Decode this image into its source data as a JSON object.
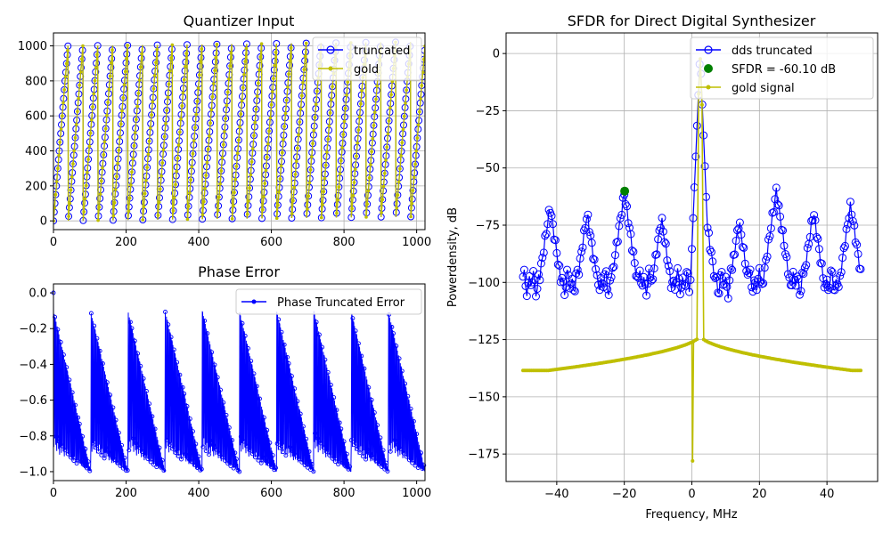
{
  "colors": {
    "blue": "#0000ff",
    "gold": "#bfbf00",
    "green": "#008000",
    "grid": "#b0b0b0"
  },
  "chart_data": [
    {
      "type": "line",
      "title": "Quantizer Input",
      "xlabel": "",
      "ylabel": "",
      "xlim": [
        0,
        1023
      ],
      "ylim": [
        -50,
        1074
      ],
      "xticks": [
        0,
        200,
        400,
        600,
        800,
        1000
      ],
      "yticks": [
        0,
        200,
        400,
        600,
        800,
        1000
      ],
      "grid": true,
      "legend": "top-right",
      "series": [
        {
          "name": "truncated",
          "marker": "open-circle",
          "color": "blue",
          "description": "sawtooth ramp from 0 to ~1020 repeating every ~40.96 samples over 1024 samples",
          "period": 40.96,
          "amplitude": 1023,
          "length": 1024
        },
        {
          "name": "gold",
          "marker": "dot",
          "color": "gold",
          "description": "same sawtooth ramp (untruncated reference)",
          "period": 40.96,
          "amplitude": 1023,
          "length": 1024
        }
      ]
    },
    {
      "type": "line",
      "title": "Phase Error",
      "xlabel": "",
      "ylabel": "",
      "xlim": [
        0,
        1023
      ],
      "ylim": [
        -1.05,
        0.05
      ],
      "xticks": [
        0,
        200,
        400,
        600,
        800,
        1000
      ],
      "yticks": [
        0.0,
        -0.2,
        -0.4,
        -0.6,
        -0.8,
        -1.0
      ],
      "grid": false,
      "legend": "top-right",
      "series": [
        {
          "name": "Phase Truncated Error",
          "marker": "dot",
          "color": "blue",
          "description": "stem-like error between -1.0 and 0, envelope resetting every ~102 samples",
          "envelope_period": 102.4,
          "length": 1024
        }
      ]
    },
    {
      "type": "line",
      "title": "SFDR for Direct Digital Synthesizer",
      "xlabel": "Frequency, MHz",
      "ylabel": "Powerdensity, dB",
      "xlim": [
        -55,
        55
      ],
      "ylim": [
        -187,
        9
      ],
      "xticks": [
        -40,
        -20,
        0,
        20,
        40
      ],
      "yticks": [
        0,
        -25,
        -50,
        -75,
        -100,
        -125,
        -150,
        -175
      ],
      "grid": true,
      "legend": "top-right",
      "series": [
        {
          "name": "dds truncated",
          "marker": "open-circle",
          "color": "blue",
          "floor": -100,
          "fundamental": {
            "x": 2.44,
            "y": 0
          },
          "spurs": [
            {
              "x": -49.9,
              "y": -99
            },
            {
              "x": -42,
              "y": -67
            },
            {
              "x": -31,
              "y": -70
            },
            {
              "x": -20,
              "y": -61
            },
            {
              "x": -9,
              "y": -72
            },
            {
              "x": 4,
              "y": -70
            },
            {
              "x": 14,
              "y": -73
            },
            {
              "x": 25,
              "y": -60
            },
            {
              "x": 36,
              "y": -69
            },
            {
              "x": 47,
              "y": -66
            }
          ]
        },
        {
          "name": "SFDR = -60.10 dB",
          "marker": "filled-circle",
          "color": "green",
          "points": [
            {
              "x": -19.9,
              "y": -60.1
            }
          ]
        },
        {
          "name": "gold signal",
          "marker": "dot",
          "color": "gold",
          "description": "clean tone: peak 0 dB at 2.44 MHz, skirt falling from -123 dB near the tone to -139 dB at band edges",
          "peak": {
            "x": 2.44,
            "y": 0
          },
          "edge_level": -138.5,
          "skirt_level": -123
        }
      ]
    }
  ]
}
